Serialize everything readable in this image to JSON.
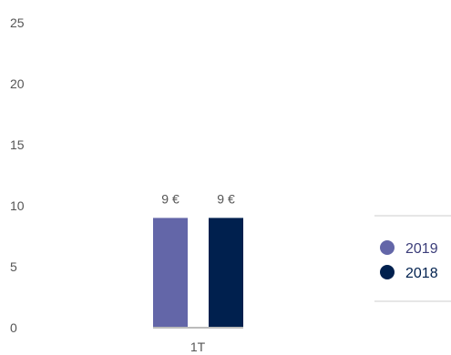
{
  "chart_data": {
    "type": "bar",
    "categories": [
      "1T"
    ],
    "series": [
      {
        "name": "2019",
        "values": [
          9
        ],
        "labels": [
          "9 €"
        ],
        "color": "#6366a8"
      },
      {
        "name": "2018",
        "values": [
          9
        ],
        "labels": [
          "9 €"
        ],
        "color": "#00204e"
      }
    ],
    "yticks": [
      "0",
      "5",
      "10",
      "15",
      "20",
      "25"
    ],
    "ylim": [
      0,
      25
    ],
    "grid": false,
    "legend_position": "right",
    "axis_color": "#bbbbbb",
    "text_color": "#555555"
  }
}
